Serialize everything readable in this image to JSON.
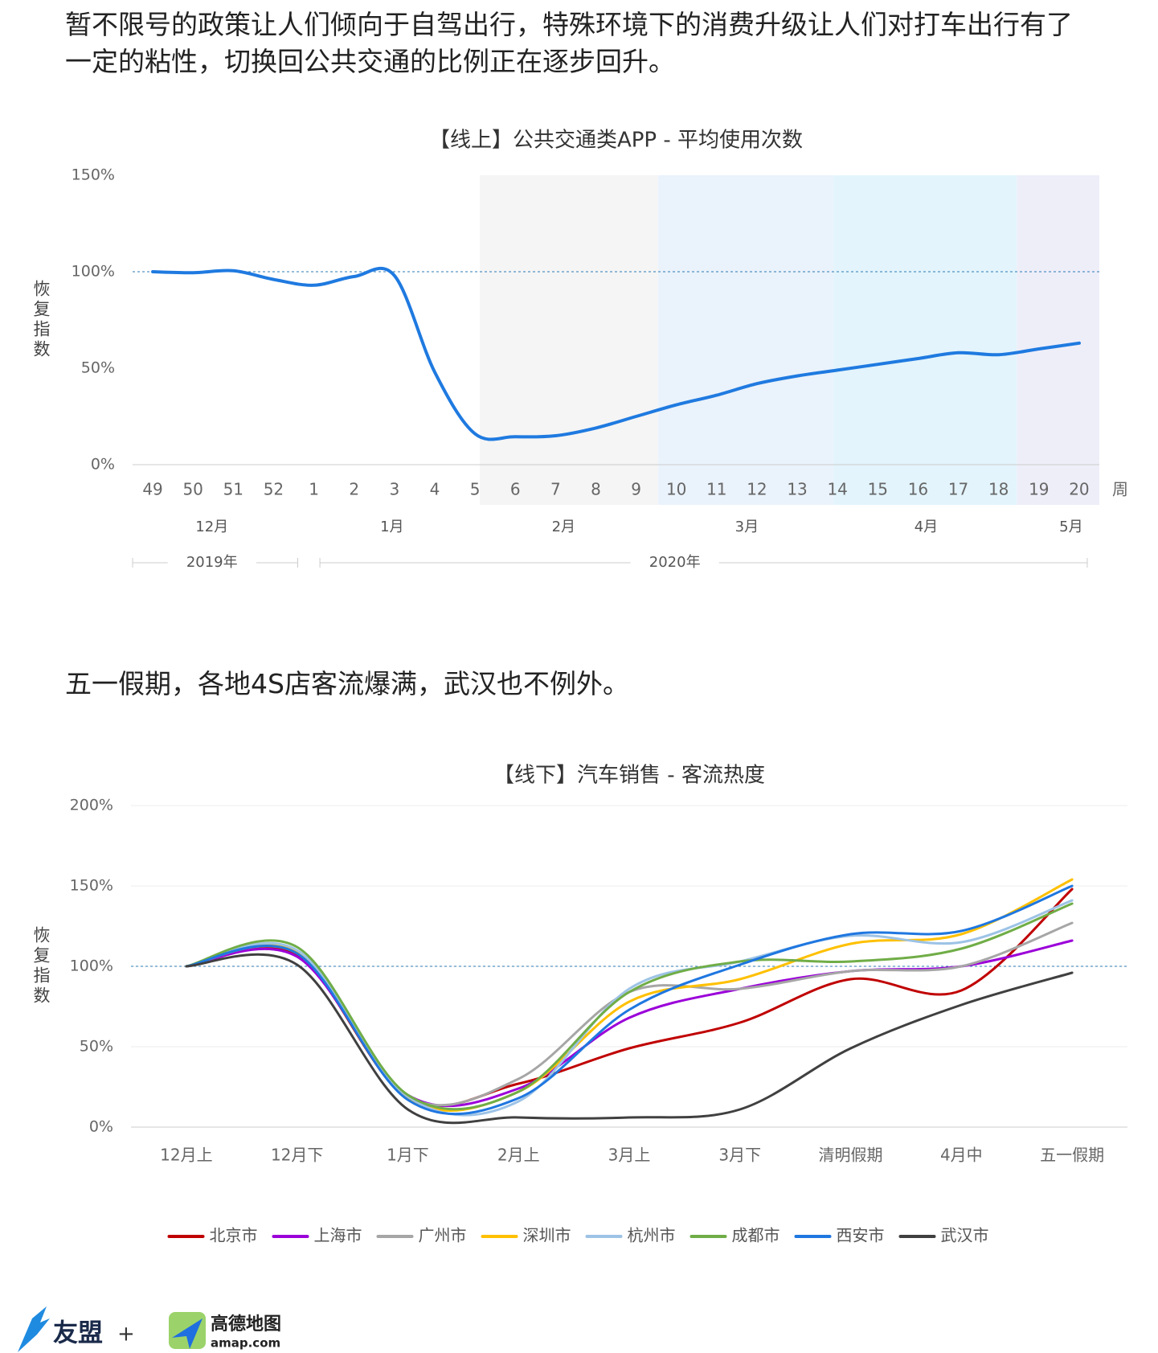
{
  "paragraphs": [
    "暂不限号的政策让人们倾向于自驾出行，特殊环境下的消费升级让人们对打车出行有了一定的粘性，切换回公共交通的比例正在逐步回升。",
    "五一假期，各地4S店客流爆满，武汉也不例外。"
  ],
  "chart_data": [
    {
      "type": "line",
      "title": "【线上】公共交通类APP - 平均使用次数",
      "y_label": "恢复指数",
      "x_label": "周",
      "categories": [
        "49",
        "50",
        "51",
        "52",
        "1",
        "2",
        "3",
        "4",
        "5",
        "6",
        "7",
        "8",
        "9",
        "10",
        "11",
        "12",
        "13",
        "14",
        "15",
        "16",
        "17",
        "18",
        "19",
        "20"
      ],
      "months": [
        "12月",
        "1月",
        "2月",
        "3月",
        "4月",
        "5月"
      ],
      "years": [
        "2019年",
        "2020年"
      ],
      "series": [
        {
          "name": "公共交通类APP",
          "color": "#1f7ae0",
          "values": [
            100,
            99.5,
            100.5,
            96,
            93,
            97.5,
            98,
            48,
            16,
            14.5,
            15,
            19,
            25,
            31,
            36,
            42,
            46,
            49,
            52,
            55,
            58,
            57,
            60,
            63
          ]
        }
      ],
      "reference_line": 100,
      "ylim": [
        0,
        150
      ],
      "yticks": [
        {
          "value": 0,
          "label": "0%"
        },
        {
          "value": 50,
          "label": "50%"
        },
        {
          "value": 100,
          "label": "100%"
        },
        {
          "value": 150,
          "label": "150%"
        }
      ]
    },
    {
      "type": "line",
      "title": "【线下】汽车销售 - 客流热度",
      "y_label": "恢复指数",
      "categories": [
        "12月上",
        "12月下",
        "1月下",
        "2月上",
        "3月上",
        "3月下",
        "清明假期",
        "4月中",
        "五一假期"
      ],
      "series": [
        {
          "name": "北京市",
          "color": "#c00000",
          "values": [
            100,
            107,
            18,
            27,
            49,
            65,
            92,
            85,
            148
          ]
        },
        {
          "name": "上海市",
          "color": "#9b00d9",
          "values": [
            100,
            106,
            20,
            24,
            68,
            86,
            97,
            100,
            116
          ]
        },
        {
          "name": "广州市",
          "color": "#a6a6a6",
          "values": [
            100,
            108,
            19,
            30,
            84,
            86,
            97,
            100,
            127
          ]
        },
        {
          "name": "深圳市",
          "color": "#ffc000",
          "values": [
            100,
            109,
            18,
            22,
            78,
            92,
            114,
            120,
            154
          ]
        },
        {
          "name": "杭州市",
          "color": "#9dc3e6",
          "values": [
            100,
            110,
            19,
            16,
            86,
            103,
            119,
            115,
            141
          ]
        },
        {
          "name": "成都市",
          "color": "#70ad47",
          "values": [
            100,
            112,
            20,
            22,
            84,
            103,
            103,
            111,
            139
          ]
        },
        {
          "name": "西安市",
          "color": "#1f77e0",
          "values": [
            100,
            108,
            17,
            18,
            73,
            101,
            120,
            122,
            150
          ]
        },
        {
          "name": "武汉市",
          "color": "#404040",
          "values": [
            100,
            101,
            11,
            6,
            6,
            11,
            49,
            76,
            96
          ]
        }
      ],
      "reference_line": 100,
      "ylim": [
        0,
        200
      ],
      "yticks": [
        {
          "value": 0,
          "label": "0%"
        },
        {
          "value": 50,
          "label": "50%"
        },
        {
          "value": 100,
          "label": "100%"
        },
        {
          "value": 150,
          "label": "150%"
        },
        {
          "value": 200,
          "label": "200%"
        }
      ]
    }
  ],
  "logos": {
    "umeng": "友盟",
    "plus": "+",
    "amap": "高德地图",
    "amap_url": "amap.com"
  }
}
